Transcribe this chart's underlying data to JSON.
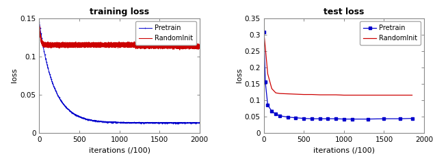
{
  "train_title": "training loss",
  "test_title": "test loss",
  "xlabel": "iterations (/100)",
  "ylabel": "loss",
  "legend_pretrain": "Pretrain",
  "legend_randominit": "RandomInit",
  "pretrain_color": "#0000cc",
  "randominit_color": "#cc0000",
  "train_xlim": [
    0,
    2000
  ],
  "train_ylim": [
    0,
    0.15
  ],
  "test_xlim": [
    0,
    2000
  ],
  "test_ylim": [
    0,
    0.35
  ],
  "train_yticks": [
    0,
    0.05,
    0.1,
    0.15
  ],
  "test_yticks": [
    0,
    0.05,
    0.1,
    0.15,
    0.2,
    0.25,
    0.3,
    0.35
  ],
  "train_xticks": [
    0,
    500,
    1000,
    1500,
    2000
  ],
  "test_xticks": [
    0,
    500,
    1000,
    1500,
    2000
  ]
}
